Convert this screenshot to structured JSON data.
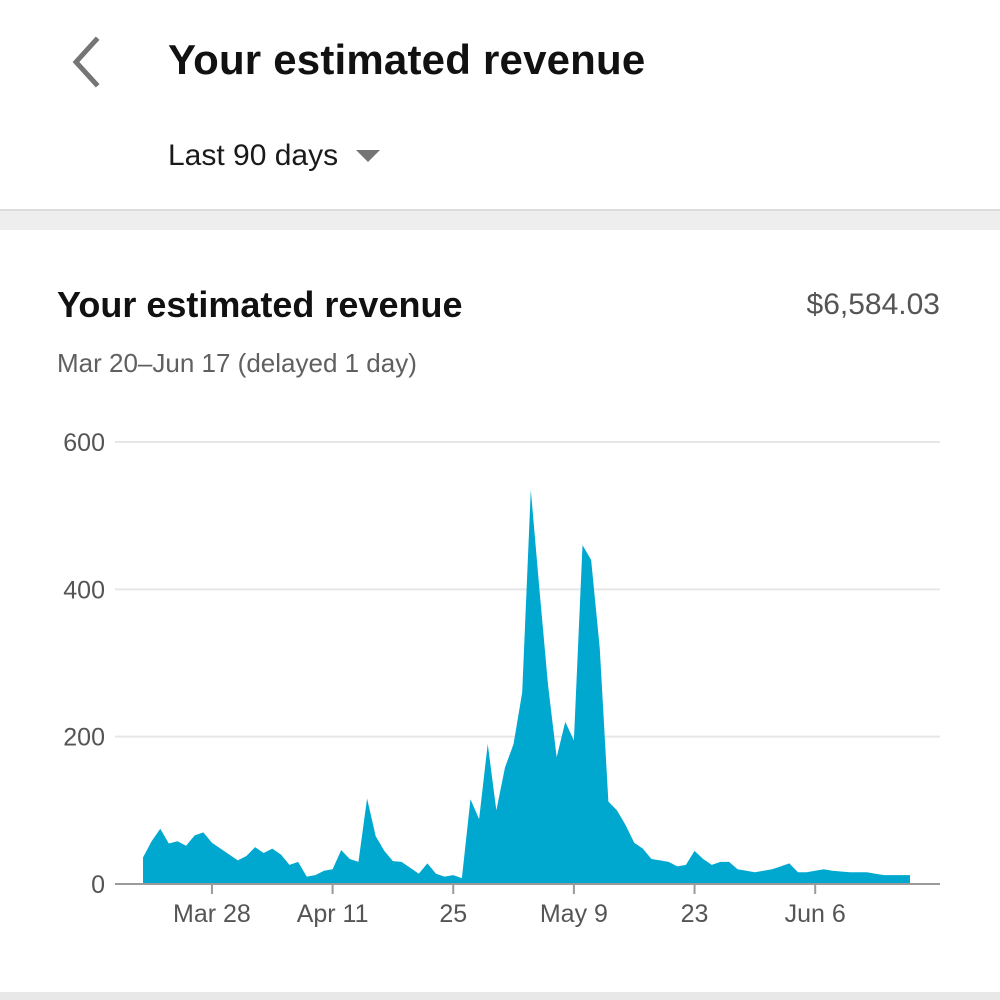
{
  "header": {
    "back_icon": "chevron-left-icon",
    "title": "Your estimated revenue",
    "range": {
      "selected": "Last 90 days",
      "caret_icon": "caret-down-icon"
    }
  },
  "card": {
    "title": "Your estimated revenue",
    "total": "$6,584.03",
    "subtitle": "Mar 20–Jun 17 (delayed 1 day)"
  },
  "colors": {
    "accent": "#00a8d0",
    "grid": "#e6e6e6",
    "axis": "#9a9a9a"
  },
  "chart_data": {
    "type": "area",
    "x": [
      "2021-03-20",
      "2021-03-21",
      "2021-03-22",
      "2021-03-23",
      "2021-03-24",
      "2021-03-25",
      "2021-03-26",
      "2021-03-27",
      "2021-03-28",
      "2021-03-29",
      "2021-03-30",
      "2021-03-31",
      "2021-04-01",
      "2021-04-02",
      "2021-04-03",
      "2021-04-04",
      "2021-04-05",
      "2021-04-06",
      "2021-04-07",
      "2021-04-08",
      "2021-04-09",
      "2021-04-10",
      "2021-04-11",
      "2021-04-12",
      "2021-04-13",
      "2021-04-14",
      "2021-04-15",
      "2021-04-16",
      "2021-04-17",
      "2021-04-18",
      "2021-04-19",
      "2021-04-20",
      "2021-04-21",
      "2021-04-22",
      "2021-04-23",
      "2021-04-24",
      "2021-04-25",
      "2021-04-26",
      "2021-04-27",
      "2021-04-28",
      "2021-04-29",
      "2021-04-30",
      "2021-05-01",
      "2021-05-02",
      "2021-05-03",
      "2021-05-04",
      "2021-05-05",
      "2021-05-06",
      "2021-05-07",
      "2021-05-08",
      "2021-05-09",
      "2021-05-10",
      "2021-05-11",
      "2021-05-12",
      "2021-05-13",
      "2021-05-14",
      "2021-05-15",
      "2021-05-16",
      "2021-05-17",
      "2021-05-18",
      "2021-05-19",
      "2021-05-20",
      "2021-05-21",
      "2021-05-22",
      "2021-05-23",
      "2021-05-24",
      "2021-05-25",
      "2021-05-26",
      "2021-05-27",
      "2021-05-28",
      "2021-05-29",
      "2021-05-30",
      "2021-05-31",
      "2021-06-01",
      "2021-06-02",
      "2021-06-03",
      "2021-06-04",
      "2021-06-05",
      "2021-06-06",
      "2021-06-07",
      "2021-06-08",
      "2021-06-09",
      "2021-06-10",
      "2021-06-11",
      "2021-06-12",
      "2021-06-13",
      "2021-06-14",
      "2021-06-15",
      "2021-06-16",
      "2021-06-17"
    ],
    "values": [
      36,
      58,
      75,
      55,
      58,
      52,
      66,
      70,
      56,
      48,
      40,
      32,
      38,
      50,
      42,
      48,
      40,
      26,
      30,
      10,
      12,
      18,
      20,
      46,
      34,
      30,
      116,
      65,
      45,
      31,
      30,
      22,
      14,
      28,
      14,
      10,
      12,
      8,
      115,
      88,
      190,
      100,
      158,
      190,
      260,
      535,
      400,
      270,
      172,
      220,
      195,
      460,
      440,
      320,
      112,
      100,
      80,
      56,
      48,
      34,
      32,
      30,
      24,
      26,
      45,
      34,
      26,
      30,
      30,
      20,
      18,
      16,
      18,
      20,
      24,
      28,
      16,
      16,
      18,
      20,
      18,
      17,
      16,
      16,
      16,
      14,
      12,
      12,
      12,
      12
    ],
    "ylim": [
      0,
      600
    ],
    "y_ticks": [
      0,
      200,
      400,
      600
    ],
    "x_ticks": [
      {
        "date": "2021-03-28",
        "label": "Mar 28"
      },
      {
        "date": "2021-04-11",
        "label": "Apr 11"
      },
      {
        "date": "2021-04-25",
        "label": "25"
      },
      {
        "date": "2021-05-09",
        "label": "May 9"
      },
      {
        "date": "2021-05-23",
        "label": "23"
      },
      {
        "date": "2021-06-06",
        "label": "Jun 6"
      }
    ],
    "grid": true,
    "legend": "none"
  }
}
